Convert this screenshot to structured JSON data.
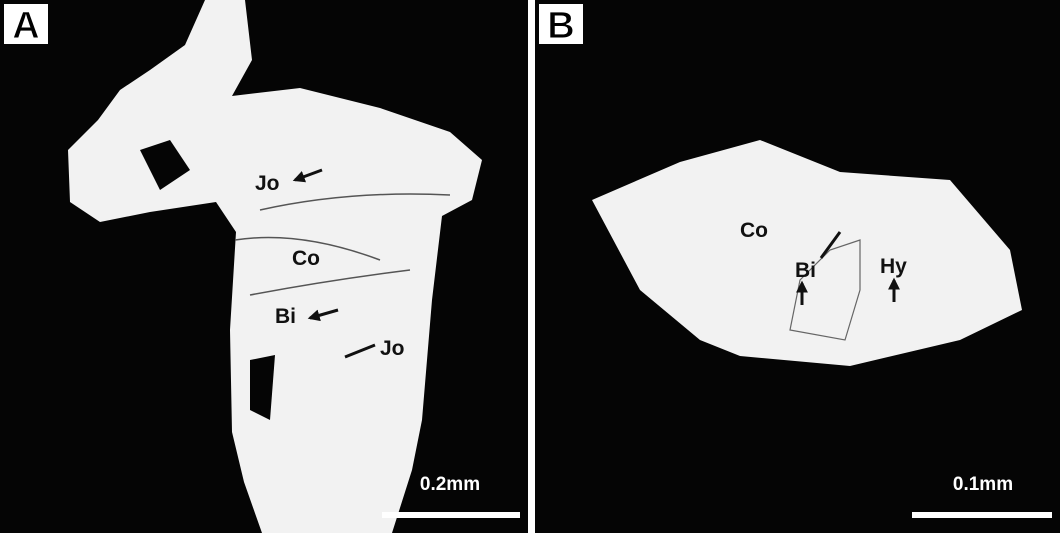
{
  "panels": [
    {
      "label": "A",
      "annotations": [
        "Jo",
        "Co",
        "Bi",
        "Jo"
      ],
      "scale_bar": "0.2mm"
    },
    {
      "label": "B",
      "annotations": [
        "Co",
        "Bi",
        "Hy"
      ],
      "scale_bar": "0.1mm"
    }
  ]
}
